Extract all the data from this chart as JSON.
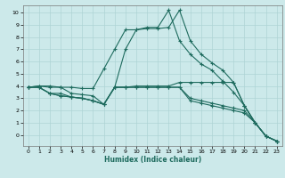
{
  "title": "",
  "xlabel": "Humidex (Indice chaleur)",
  "bg_color": "#cce9ea",
  "line_color": "#1e6b5e",
  "grid_color": "#aed4d5",
  "xlim": [
    -0.5,
    23.5
  ],
  "ylim": [
    -0.9,
    10.6
  ],
  "xticks": [
    0,
    1,
    2,
    3,
    4,
    5,
    6,
    7,
    8,
    9,
    10,
    11,
    12,
    13,
    14,
    15,
    16,
    17,
    18,
    19,
    20,
    21,
    22,
    23
  ],
  "yticks": [
    0,
    1,
    2,
    3,
    4,
    5,
    6,
    7,
    8,
    9,
    10
  ],
  "lines": [
    {
      "x": [
        0,
        1,
        2,
        3,
        4,
        5,
        6,
        7,
        8,
        9,
        10,
        11,
        12,
        13,
        14,
        15,
        16,
        17,
        18,
        19,
        20,
        21,
        22,
        23
      ],
      "y": [
        3.9,
        4.0,
        4.0,
        3.9,
        3.9,
        3.8,
        3.8,
        5.4,
        7.0,
        8.6,
        8.6,
        8.8,
        8.8,
        10.2,
        7.7,
        6.6,
        5.8,
        5.3,
        4.4,
        3.5,
        2.4,
        1.0,
        -0.1,
        -0.5
      ]
    },
    {
      "x": [
        0,
        1,
        2,
        3,
        4,
        5,
        6,
        7,
        8,
        9,
        10,
        11,
        12,
        13,
        14,
        15,
        16,
        17,
        18,
        19,
        20,
        21,
        22,
        23
      ],
      "y": [
        3.9,
        4.0,
        3.9,
        3.9,
        3.4,
        3.3,
        3.2,
        2.5,
        3.9,
        7.0,
        8.6,
        8.7,
        8.7,
        8.8,
        10.2,
        7.7,
        6.6,
        5.9,
        5.3,
        4.3,
        2.4,
        1.0,
        -0.1,
        -0.5
      ]
    },
    {
      "x": [
        0,
        1,
        2,
        3,
        4,
        5,
        6,
        7,
        8,
        9,
        10,
        11,
        12,
        13,
        14,
        15,
        16,
        17,
        18,
        19,
        20,
        21,
        22,
        23
      ],
      "y": [
        3.9,
        3.9,
        3.4,
        3.4,
        3.1,
        3.0,
        2.8,
        2.5,
        3.9,
        3.9,
        4.0,
        4.0,
        4.0,
        4.0,
        4.3,
        4.3,
        4.3,
        4.3,
        4.3,
        4.3,
        2.4,
        1.0,
        -0.1,
        -0.5
      ]
    },
    {
      "x": [
        0,
        1,
        2,
        3,
        4,
        5,
        6,
        7,
        8,
        9,
        10,
        11,
        12,
        13,
        14,
        15,
        16,
        17,
        18,
        19,
        20,
        21,
        22,
        23
      ],
      "y": [
        3.9,
        3.9,
        3.4,
        3.2,
        3.1,
        3.0,
        2.8,
        2.5,
        3.9,
        3.9,
        3.9,
        3.9,
        3.9,
        3.9,
        3.9,
        3.0,
        2.8,
        2.6,
        2.4,
        2.2,
        2.0,
        1.0,
        -0.1,
        -0.5
      ]
    },
    {
      "x": [
        0,
        1,
        2,
        3,
        4,
        5,
        6,
        7,
        8,
        9,
        10,
        11,
        12,
        13,
        14,
        15,
        16,
        17,
        18,
        19,
        20,
        21,
        22,
        23
      ],
      "y": [
        3.9,
        3.9,
        3.4,
        3.2,
        3.1,
        3.0,
        2.8,
        2.5,
        3.9,
        3.9,
        3.9,
        3.9,
        3.9,
        3.9,
        3.9,
        2.8,
        2.6,
        2.4,
        2.2,
        2.0,
        1.8,
        1.0,
        -0.1,
        -0.5
      ]
    }
  ]
}
